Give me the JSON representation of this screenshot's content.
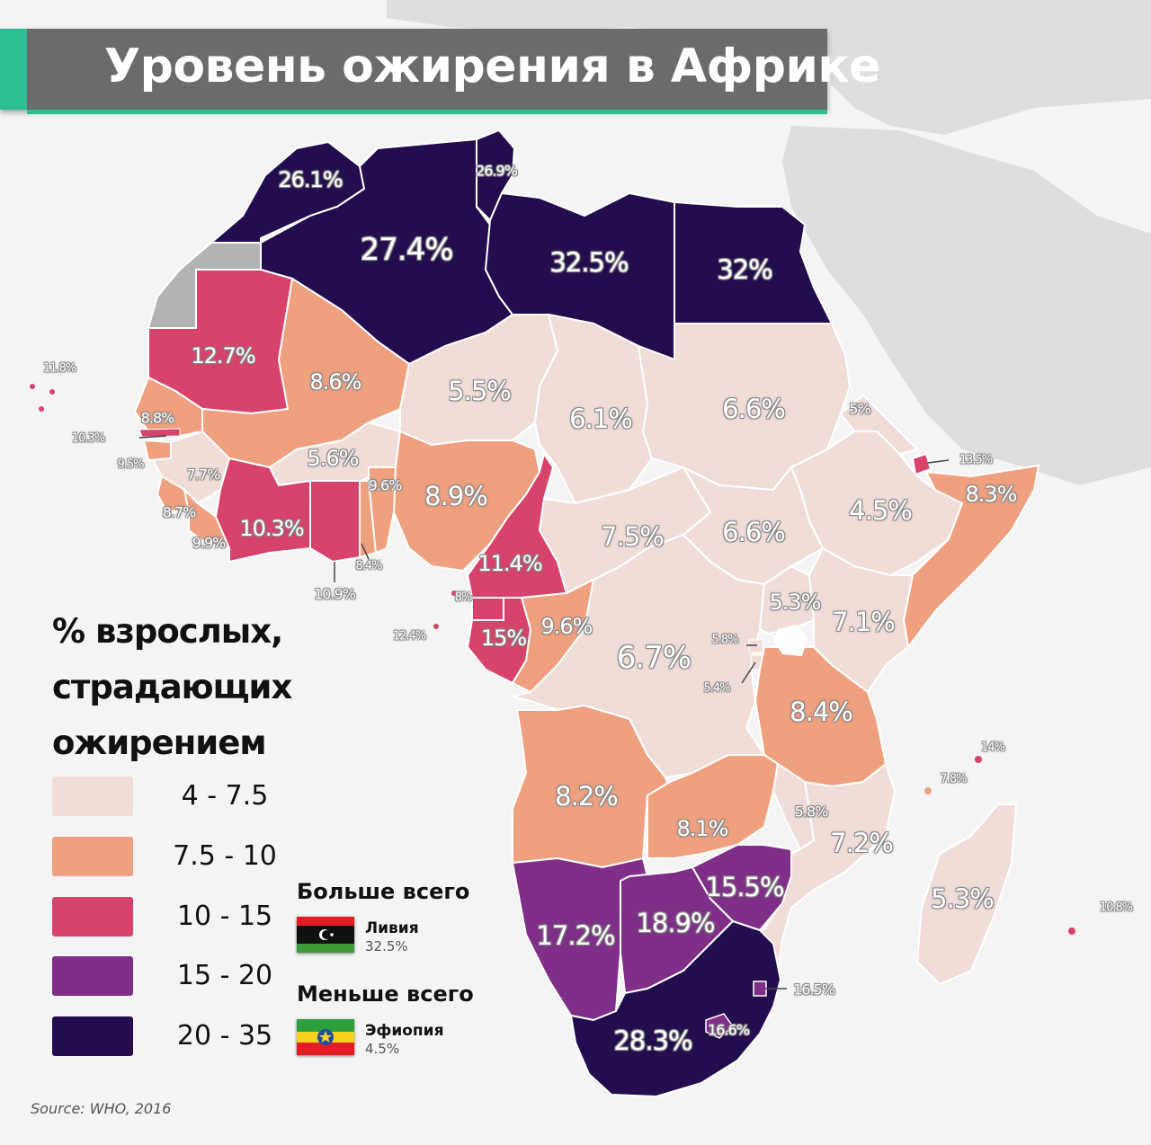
{
  "title": "Уровень ожирения в Африке",
  "legend": {
    "title_lines": [
      "% взрослых,",
      "страдающих",
      "ожирением"
    ],
    "bins": [
      {
        "label": "4  - 7.5",
        "color": "#f0ddd8"
      },
      {
        "label": "7.5 - 10",
        "color": "#efa07e"
      },
      {
        "label": "10 - 15",
        "color": "#d7436a"
      },
      {
        "label": "15 - 20",
        "color": "#7f2f88"
      },
      {
        "label": "20 - 35",
        "color": "#230d4e"
      }
    ]
  },
  "extremes": {
    "most": {
      "heading": "Больше всего",
      "country": "Ливия",
      "value": "32.5%"
    },
    "least": {
      "heading": "Меньше всего",
      "country": "Эфиопия",
      "value": "4.5%"
    }
  },
  "source": "Source: WHO, 2016",
  "labels": {
    "morocco": "26.1%",
    "algeria": "27.4%",
    "tunisia": "26.9%",
    "libya": "32.5%",
    "egypt": "32%",
    "mauritania": "12.7%",
    "mali": "8.6%",
    "niger": "5.5%",
    "chad": "6.1%",
    "sudan": "6.6%",
    "eritrea": "5%",
    "djibouti": "13.5%",
    "somalia": "8.3%",
    "ethiopia": "4.5%",
    "cape_verde": "11.8%",
    "senegal": "8.8%",
    "gambia": "10.3%",
    "guinea_bissau": "9.5%",
    "guinea": "7.7%",
    "sierra_leone": "8.7%",
    "liberia": "9.9%",
    "burkina": "5.6%",
    "ivory_coast": "10.3%",
    "ghana": "10.9%",
    "togo_benin": "9.6%",
    "benin": "8.4%",
    "nigeria": "8.9%",
    "cameroon": "11.4%",
    "car": "7.5%",
    "south_sudan": "6.6%",
    "eq_guinea": "8%",
    "sao_tome": "12.4%",
    "gabon": "15%",
    "congo": "9.6%",
    "drc": "6.7%",
    "uganda": "5.3%",
    "kenya": "7.1%",
    "rwanda": "5.8%",
    "burundi": "5.4%",
    "tanzania": "8.4%",
    "seychelles": "14%",
    "comoros": "7.8%",
    "angola": "8.2%",
    "zambia": "8.1%",
    "malawi": "5.8%",
    "mozambique": "7.2%",
    "madagascar": "5.3%",
    "mauritius": "10.8%",
    "zimbabwe": "15.5%",
    "namibia": "17.2%",
    "botswana": "18.9%",
    "eswatini": "16.5%",
    "south_africa": "28.3%",
    "lesotho": "16.6%"
  }
}
